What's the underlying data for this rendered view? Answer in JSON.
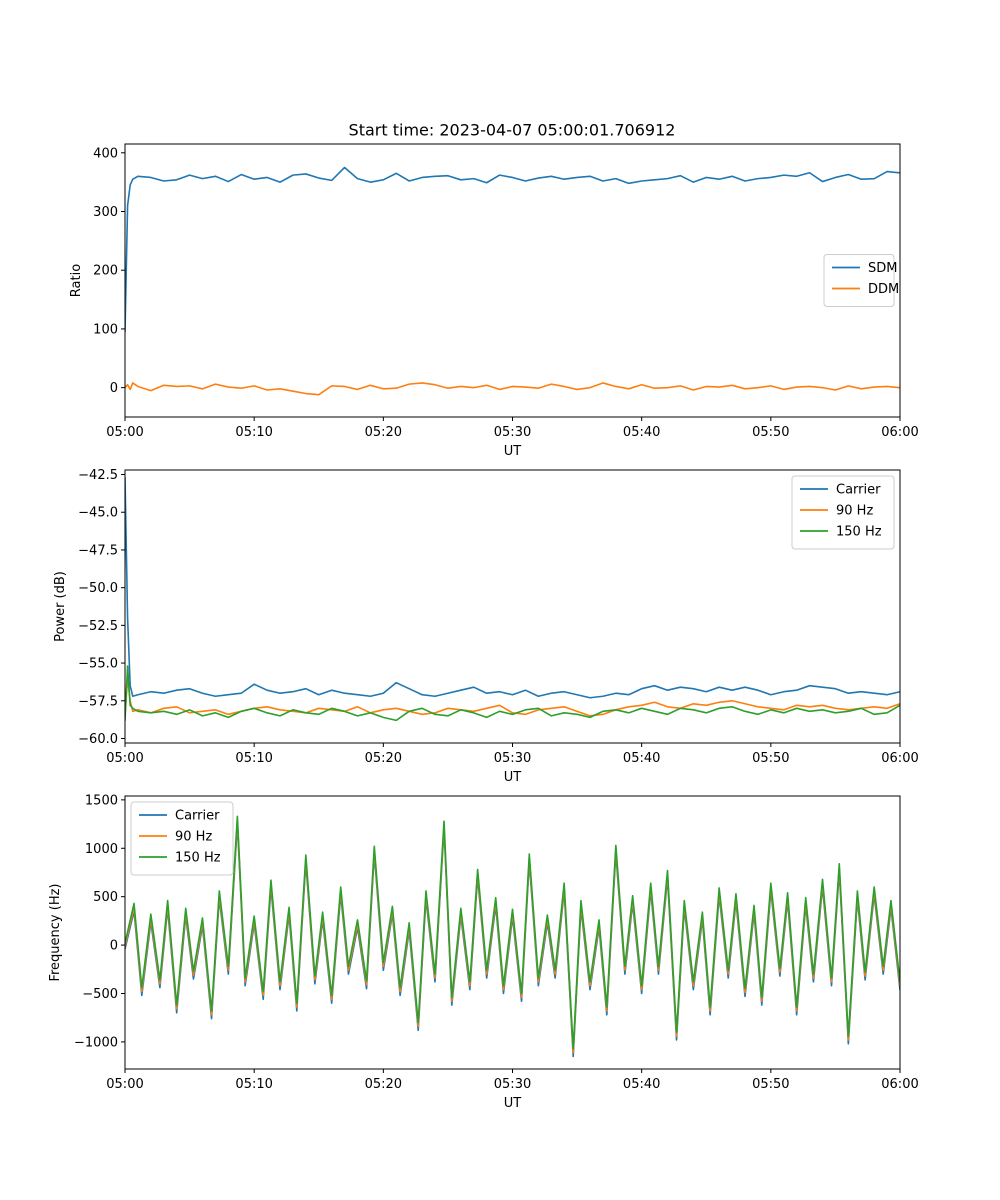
{
  "figure": {
    "suptitle": "Start time: 2023-04-07 05:00:01.706912"
  },
  "chart_data": [
    {
      "type": "line",
      "title": "Start time: 2023-04-07 05:00:01.706912",
      "xlabel": "UT",
      "ylabel": "Ratio",
      "xlim": [
        "05:00",
        "06:00"
      ],
      "ylim": [
        -50,
        415
      ],
      "x_ticks": [
        "05:00",
        "05:10",
        "05:20",
        "05:30",
        "05:40",
        "05:50",
        "06:00"
      ],
      "y_ticks": [
        0,
        100,
        200,
        300,
        400
      ],
      "y_tick_labels": [
        "0",
        "100",
        "200",
        "300",
        "400"
      ],
      "legend_position": "center-right",
      "grid": false,
      "x_minutes": [
        0,
        0.2,
        0.4,
        0.6,
        1,
        2,
        3,
        4,
        5,
        6,
        7,
        8,
        9,
        10,
        11,
        12,
        13,
        14,
        15,
        16,
        17,
        18,
        19,
        20,
        21,
        22,
        23,
        24,
        25,
        26,
        27,
        28,
        29,
        30,
        31,
        32,
        33,
        34,
        35,
        36,
        37,
        38,
        39,
        40,
        41,
        42,
        43,
        44,
        45,
        46,
        47,
        48,
        49,
        50,
        51,
        52,
        53,
        54,
        55,
        56,
        57,
        58,
        59,
        60
      ],
      "series": [
        {
          "name": "SDM",
          "color": "#1f77b4",
          "values": [
            95,
            310,
            345,
            355,
            360,
            358,
            352,
            354,
            362,
            356,
            360,
            351,
            363,
            355,
            358,
            350,
            362,
            364,
            357,
            353,
            375,
            356,
            350,
            354,
            365,
            352,
            358,
            360,
            361,
            354,
            356,
            349,
            362,
            358,
            352,
            357,
            360,
            355,
            358,
            360,
            352,
            356,
            348,
            352,
            354,
            356,
            361,
            350,
            358,
            355,
            360,
            352,
            356,
            358,
            362,
            360,
            366,
            351,
            358,
            363,
            355,
            356,
            368,
            366
          ]
        },
        {
          "name": "DDM",
          "color": "#ff7f0e",
          "values": [
            0,
            5,
            -3,
            8,
            2,
            -5,
            4,
            2,
            3,
            -2,
            6,
            1,
            -1,
            3,
            -4,
            -2,
            -6,
            -10,
            -12,
            3,
            2,
            -3,
            4,
            -2,
            -1,
            6,
            8,
            5,
            -1,
            2,
            0,
            4,
            -3,
            2,
            1,
            -1,
            6,
            2,
            -3,
            0,
            8,
            2,
            -2,
            5,
            -1,
            0,
            3,
            -4,
            2,
            1,
            4,
            -2,
            0,
            3,
            -3,
            1,
            2,
            0,
            -4,
            3,
            -2,
            1,
            2,
            0
          ]
        }
      ]
    },
    {
      "type": "line",
      "title": "",
      "xlabel": "UT",
      "ylabel": "Power (dB)",
      "xlim": [
        "05:00",
        "06:00"
      ],
      "ylim": [
        -60.3,
        -42.2
      ],
      "x_ticks": [
        "05:00",
        "05:10",
        "05:20",
        "05:30",
        "05:40",
        "05:50",
        "06:00"
      ],
      "y_ticks": [
        -60.0,
        -57.5,
        -55.0,
        -52.5,
        -50.0,
        -47.5,
        -45.0,
        -42.5
      ],
      "y_tick_labels": [
        "−60.0",
        "−57.5",
        "−55.0",
        "−52.5",
        "−50.0",
        "−47.5",
        "−45.0",
        "−42.5"
      ],
      "legend_position": "top-right",
      "grid": false,
      "x_minutes": [
        0,
        0.2,
        0.4,
        0.6,
        1,
        2,
        3,
        4,
        5,
        6,
        7,
        8,
        9,
        10,
        11,
        12,
        13,
        14,
        15,
        16,
        17,
        18,
        19,
        20,
        21,
        22,
        23,
        24,
        25,
        26,
        27,
        28,
        29,
        30,
        31,
        32,
        33,
        34,
        35,
        36,
        37,
        38,
        39,
        40,
        41,
        42,
        43,
        44,
        45,
        46,
        47,
        48,
        49,
        50,
        51,
        52,
        53,
        54,
        55,
        56,
        57,
        58,
        59,
        60
      ],
      "series": [
        {
          "name": "Carrier",
          "color": "#1f77b4",
          "values": [
            -42.7,
            -52.0,
            -56.5,
            -57.2,
            -57.1,
            -56.9,
            -57.0,
            -56.8,
            -56.7,
            -57.0,
            -57.2,
            -57.1,
            -57.0,
            -56.4,
            -56.8,
            -57.0,
            -56.9,
            -56.7,
            -57.1,
            -56.8,
            -57.0,
            -57.1,
            -57.2,
            -57.0,
            -56.3,
            -56.7,
            -57.1,
            -57.2,
            -57.0,
            -56.8,
            -56.6,
            -57.0,
            -56.9,
            -57.1,
            -56.8,
            -57.2,
            -57.0,
            -56.9,
            -57.1,
            -57.3,
            -57.2,
            -57.0,
            -57.1,
            -56.7,
            -56.5,
            -56.8,
            -56.6,
            -56.7,
            -56.9,
            -56.6,
            -56.8,
            -56.6,
            -56.8,
            -57.1,
            -56.9,
            -56.8,
            -56.5,
            -56.6,
            -56.7,
            -57.0,
            -56.9,
            -57.0,
            -57.1,
            -56.9
          ]
        },
        {
          "name": "90 Hz",
          "color": "#ff7f0e",
          "values": [
            -58.5,
            -56.0,
            -57.5,
            -58.2,
            -58.1,
            -58.3,
            -58.0,
            -57.9,
            -58.3,
            -58.2,
            -58.1,
            -58.4,
            -58.2,
            -58.0,
            -57.9,
            -58.1,
            -58.2,
            -58.3,
            -58.0,
            -58.1,
            -58.2,
            -57.9,
            -58.3,
            -58.1,
            -58.0,
            -58.2,
            -58.4,
            -58.3,
            -58.0,
            -58.1,
            -58.2,
            -58.0,
            -57.8,
            -58.3,
            -58.4,
            -58.1,
            -58.0,
            -57.9,
            -58.2,
            -58.5,
            -58.4,
            -58.1,
            -57.9,
            -57.8,
            -57.6,
            -57.9,
            -58.0,
            -57.7,
            -57.8,
            -57.6,
            -57.5,
            -57.7,
            -57.9,
            -58.0,
            -58.1,
            -57.8,
            -57.9,
            -57.8,
            -58.0,
            -58.1,
            -58.0,
            -57.9,
            -58.0,
            -57.7
          ]
        },
        {
          "name": "150 Hz",
          "color": "#2ca02c",
          "values": [
            -58.8,
            -55.2,
            -57.8,
            -58.0,
            -58.2,
            -58.3,
            -58.2,
            -58.4,
            -58.1,
            -58.5,
            -58.3,
            -58.6,
            -58.2,
            -58.0,
            -58.3,
            -58.5,
            -58.1,
            -58.3,
            -58.4,
            -58.0,
            -58.2,
            -58.5,
            -58.3,
            -58.6,
            -58.8,
            -58.2,
            -58.0,
            -58.4,
            -58.5,
            -58.1,
            -58.3,
            -58.6,
            -58.2,
            -58.4,
            -58.1,
            -58.0,
            -58.5,
            -58.3,
            -58.4,
            -58.6,
            -58.2,
            -58.1,
            -58.3,
            -58.0,
            -58.2,
            -58.4,
            -58.0,
            -58.1,
            -58.3,
            -58.0,
            -57.9,
            -58.2,
            -58.4,
            -58.1,
            -58.3,
            -58.0,
            -58.2,
            -58.1,
            -58.3,
            -58.2,
            -58.0,
            -58.4,
            -58.3,
            -57.8
          ]
        }
      ]
    },
    {
      "type": "line",
      "title": "",
      "xlabel": "UT",
      "ylabel": "Frequency (Hz)",
      "xlim": [
        "05:00",
        "06:00"
      ],
      "ylim": [
        -1280,
        1540
      ],
      "x_ticks": [
        "05:00",
        "05:10",
        "05:20",
        "05:30",
        "05:40",
        "05:50",
        "06:00"
      ],
      "y_ticks": [
        -1000,
        -500,
        0,
        500,
        1000,
        1500
      ],
      "y_tick_labels": [
        "−1000",
        "−500",
        "0",
        "500",
        "1000",
        "1500"
      ],
      "legend_position": "top-left",
      "grid": false,
      "x_minutes": [
        0,
        0.7,
        1.3,
        2,
        2.7,
        3.3,
        4,
        4.7,
        5.3,
        6,
        6.7,
        7.3,
        8,
        8.7,
        9.3,
        10,
        10.7,
        11.3,
        12,
        12.7,
        13.3,
        14,
        14.7,
        15.3,
        16,
        16.7,
        17.3,
        18,
        18.7,
        19.3,
        20,
        20.7,
        21.3,
        22,
        22.7,
        23.3,
        24,
        24.7,
        25.3,
        26,
        26.7,
        27.3,
        28,
        28.7,
        29.3,
        30,
        30.7,
        31.3,
        32,
        32.7,
        33.3,
        34,
        34.7,
        35.3,
        36,
        36.7,
        37.3,
        38,
        38.7,
        39.3,
        40,
        40.7,
        41.3,
        42,
        42.7,
        43.3,
        44,
        44.7,
        45.3,
        46,
        46.7,
        47.3,
        48,
        48.7,
        49.3,
        50,
        50.7,
        51.3,
        52,
        52.7,
        53.3,
        54,
        54.7,
        55.3,
        56,
        56.7,
        57.3,
        58,
        58.7,
        59.3,
        60
      ],
      "series": [
        {
          "name": "Carrier",
          "color": "#1f77b4",
          "values": [
            -40,
            350,
            -520,
            240,
            -440,
            380,
            -700,
            300,
            -350,
            200,
            -760,
            480,
            -300,
            1250,
            -420,
            220,
            -560,
            590,
            -460,
            310,
            -680,
            850,
            -400,
            260,
            -600,
            520,
            -300,
            180,
            -450,
            940,
            -260,
            320,
            -520,
            150,
            -880,
            480,
            -380,
            1200,
            -620,
            300,
            -460,
            700,
            -340,
            410,
            -500,
            290,
            -580,
            860,
            -420,
            230,
            -340,
            560,
            -1150,
            380,
            -460,
            180,
            -720,
            950,
            -300,
            430,
            -500,
            560,
            -300,
            690,
            -980,
            380,
            -460,
            260,
            -720,
            510,
            -340,
            450,
            -530,
            330,
            -620,
            560,
            -320,
            460,
            -720,
            410,
            -380,
            600,
            -420,
            760,
            -1020,
            480,
            -360,
            520,
            -300,
            380,
            -460
          ]
        },
        {
          "name": "90 Hz",
          "color": "#ff7f0e",
          "values": [
            -10,
            390,
            -480,
            280,
            -400,
            420,
            -660,
            340,
            -310,
            240,
            -720,
            520,
            -260,
            1290,
            -380,
            260,
            -520,
            630,
            -420,
            350,
            -640,
            890,
            -360,
            300,
            -560,
            560,
            -260,
            220,
            -410,
            980,
            -220,
            360,
            -480,
            190,
            -840,
            520,
            -340,
            1240,
            -580,
            340,
            -420,
            740,
            -300,
            450,
            -460,
            330,
            -540,
            900,
            -380,
            270,
            -300,
            600,
            -1110,
            420,
            -420,
            220,
            -680,
            990,
            -260,
            470,
            -460,
            600,
            -260,
            730,
            -940,
            420,
            -420,
            300,
            -680,
            550,
            -300,
            490,
            -490,
            370,
            -580,
            600,
            -280,
            500,
            -680,
            450,
            -340,
            640,
            -380,
            800,
            -980,
            520,
            -320,
            560,
            -260,
            420,
            -420
          ]
        },
        {
          "name": "150 Hz",
          "color": "#2ca02c",
          "values": [
            20,
            430,
            -440,
            320,
            -360,
            460,
            -620,
            380,
            -270,
            280,
            -680,
            560,
            -220,
            1330,
            -340,
            300,
            -480,
            670,
            -380,
            390,
            -600,
            930,
            -320,
            340,
            -520,
            600,
            -220,
            260,
            -370,
            1020,
            -180,
            400,
            -440,
            230,
            -800,
            560,
            -300,
            1280,
            -540,
            380,
            -380,
            780,
            -260,
            490,
            -420,
            370,
            -500,
            940,
            -340,
            310,
            -260,
            640,
            -1070,
            460,
            -380,
            260,
            -640,
            1030,
            -220,
            510,
            -420,
            640,
            -220,
            770,
            -900,
            460,
            -380,
            340,
            -640,
            590,
            -260,
            530,
            -450,
            410,
            -540,
            640,
            -240,
            540,
            -640,
            490,
            -300,
            680,
            -340,
            840,
            -940,
            560,
            -280,
            600,
            -220,
            460,
            -380
          ]
        }
      ]
    }
  ]
}
